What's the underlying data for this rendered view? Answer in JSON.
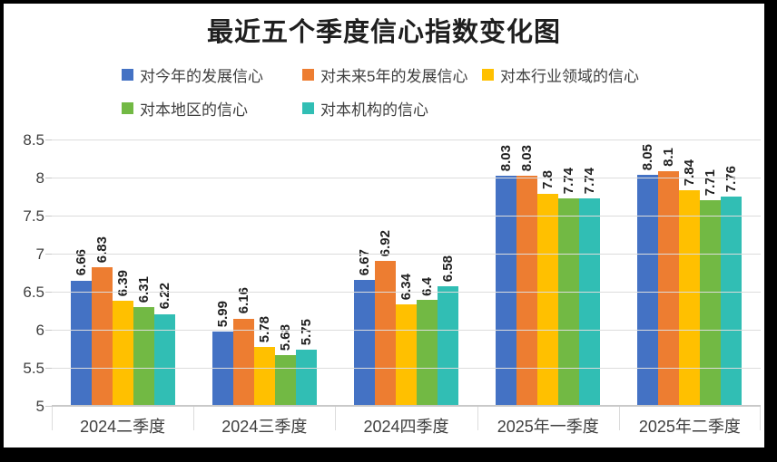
{
  "title": "最近五个季度信心指数变化图",
  "chart_data": {
    "type": "bar",
    "title": "最近五个季度信心指数变化图",
    "categories": [
      "2024二季度",
      "2024三季度",
      "2024四季度",
      "2025年一季度",
      "2025年二季度"
    ],
    "series": [
      {
        "name": "对今年的发展信心",
        "color": "#4472C4",
        "values": [
          6.66,
          5.99,
          6.67,
          8.03,
          8.05
        ]
      },
      {
        "name": "对未来5年的发展信心",
        "color": "#ED7D31",
        "values": [
          6.83,
          6.16,
          6.92,
          8.03,
          8.1
        ]
      },
      {
        "name": "对本行业领域的信心",
        "color": "#FFC000",
        "values": [
          6.39,
          5.78,
          6.34,
          7.8,
          7.84
        ]
      },
      {
        "name": "对本地区的信心",
        "color": "#72B944",
        "values": [
          6.31,
          5.68,
          6.4,
          7.74,
          7.71
        ]
      },
      {
        "name": "对本机构的信心",
        "color": "#31BEB4",
        "values": [
          6.22,
          5.75,
          6.58,
          7.74,
          7.76
        ]
      }
    ],
    "ylim": [
      5,
      8.5
    ],
    "ytick_step": 0.5,
    "ytick_labels": [
      "8.5",
      "8",
      "7.5",
      "7",
      "6.5",
      "6",
      "5.5",
      "5"
    ],
    "xlabel": "",
    "ylabel": "",
    "grid": true,
    "legend_position": "top",
    "data_labels": true
  }
}
